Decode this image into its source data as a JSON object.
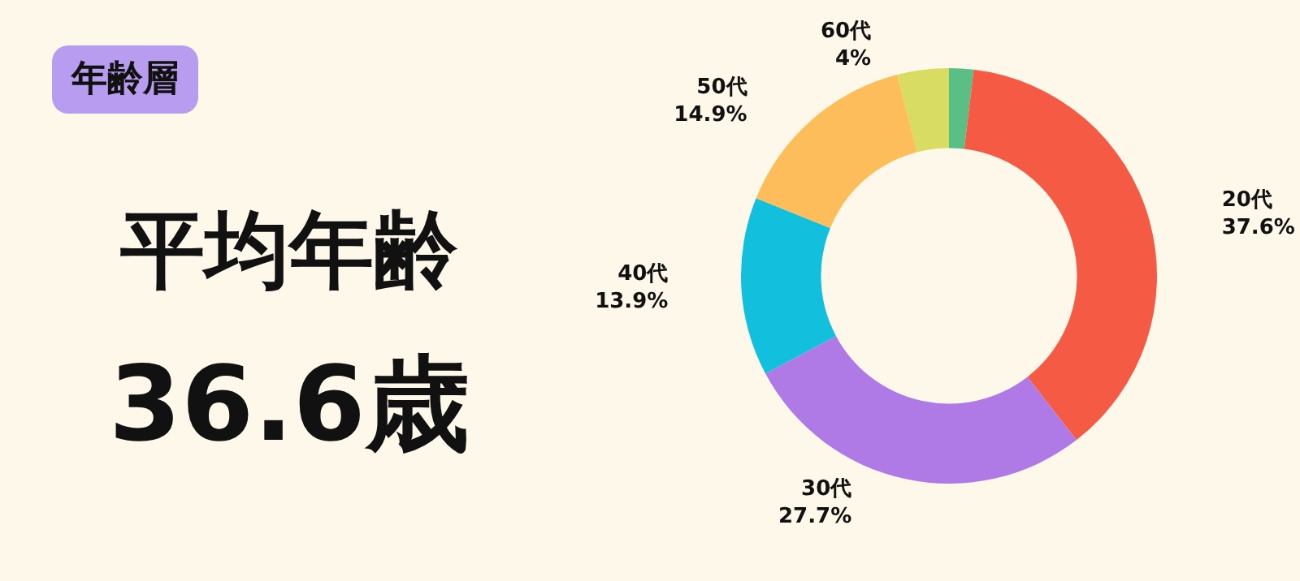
{
  "chart_data": {
    "type": "donut",
    "title": "年齢層",
    "annotations": [
      "平均年齢",
      "36.6歳"
    ],
    "categories": [
      null,
      "20代",
      "30代",
      "40代",
      "50代",
      "60代"
    ],
    "values": [
      1.9,
      37.6,
      27.7,
      13.9,
      14.9,
      4
    ],
    "value_labels": [
      null,
      "37.6%",
      "27.7%",
      "13.9%",
      "14.9%",
      "4%"
    ],
    "colors": [
      "#5bbf85",
      "#f55a45",
      "#b07ae6",
      "#12bfdc",
      "#fdbd5a",
      "#d9dc62"
    ]
  }
}
